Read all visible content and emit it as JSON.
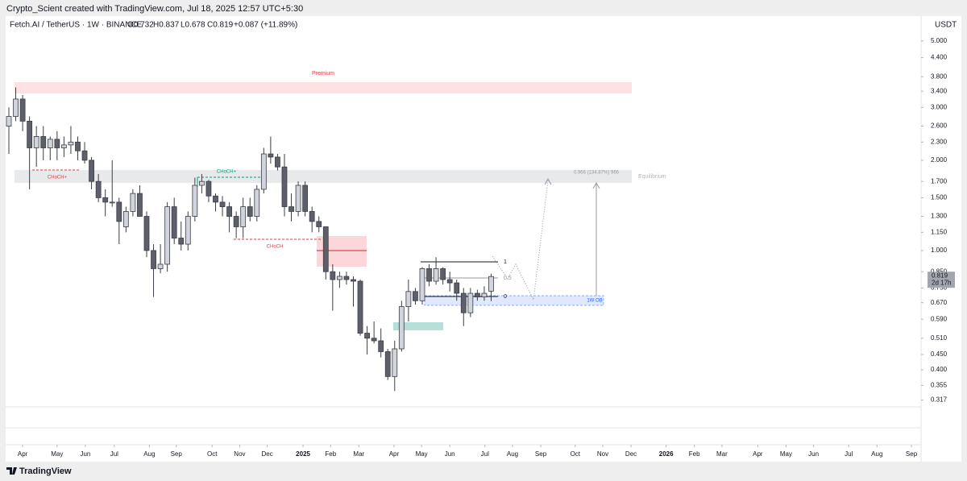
{
  "header": {
    "credit": "Crypto_Scient created with TradingView.com, Jul 18, 2025 12:57 UTC+5:30",
    "symbol": "Fetch.AI / TetherUS · 1W · BINANCE",
    "open": "O0.732",
    "high": "H0.837",
    "low": "L0.678",
    "close": "C0.819",
    "change": "+0.087 (+11.89%)"
  },
  "currency": "USDT",
  "price_tag": {
    "price": "0.819",
    "countdown": "2d 17h"
  },
  "annotations": {
    "premium": "Premium",
    "equilibrium": "Equilibrium",
    "measure": "0.966 (134.87%) 966",
    "choch_1": "CHoCH+",
    "choch_2": "CHoCH+",
    "choch_3": "CHoCH",
    "order_block": "1W OB",
    "fib_1": "1",
    "fib_05": "0.5",
    "fib_0": "0"
  },
  "footer": {
    "brand": "TradingView"
  },
  "chart_data": {
    "type": "candlestick",
    "log_scale": true,
    "up_color": "#d1d4dc",
    "down_color": "#5d606b",
    "border_color": "#3a3d46",
    "series": [
      {
        "open": [
          2.6,
          2.8,
          3.2,
          2.7,
          2.2,
          2.4,
          2.2,
          2.35,
          2.2,
          2.25,
          2.3,
          2.15,
          2.0,
          1.7,
          1.5,
          1.45,
          1.45,
          1.2,
          1.35,
          1.55,
          1.3,
          1.0,
          0.87,
          0.9,
          1.4,
          1.1,
          1.05,
          1.3,
          1.65,
          1.7,
          1.52,
          1.45,
          1.4,
          1.3,
          1.2,
          1.4,
          1.3,
          1.6,
          2.1,
          2.05,
          1.9,
          1.4,
          1.35,
          1.65,
          1.35,
          1.25,
          1.2,
          0.85,
          0.8,
          0.82,
          0.8,
          0.79,
          0.53,
          0.51,
          0.5,
          0.46,
          0.38,
          0.47,
          0.65,
          0.73,
          0.68,
          0.87,
          0.79,
          0.87,
          0.8,
          0.78,
          0.72,
          0.62,
          0.72,
          0.7,
          0.732
        ],
        "high": [
          3.0,
          3.5,
          3.3,
          2.8,
          2.6,
          2.6,
          2.4,
          2.5,
          2.4,
          2.6,
          2.4,
          2.3,
          2.05,
          1.8,
          1.6,
          2.0,
          1.5,
          1.4,
          1.6,
          1.65,
          1.35,
          1.05,
          1.05,
          1.45,
          1.5,
          1.25,
          1.35,
          1.75,
          1.8,
          1.72,
          1.55,
          1.52,
          1.45,
          1.35,
          1.5,
          1.5,
          1.65,
          2.2,
          2.4,
          2.1,
          2.1,
          1.55,
          1.7,
          1.7,
          1.4,
          1.3,
          1.2,
          0.9,
          0.85,
          0.85,
          0.82,
          0.8,
          0.56,
          0.58,
          0.55,
          0.47,
          0.5,
          0.68,
          0.8,
          0.75,
          0.88,
          0.9,
          0.95,
          0.88,
          0.85,
          0.8,
          0.75,
          0.75,
          0.74,
          0.76,
          0.837
        ],
        "low": [
          2.1,
          2.7,
          2.5,
          1.6,
          1.9,
          2.0,
          2.0,
          2.0,
          2.05,
          2.1,
          2.0,
          1.95,
          1.6,
          1.45,
          1.3,
          1.4,
          1.05,
          1.15,
          1.3,
          1.3,
          0.95,
          0.7,
          0.84,
          0.85,
          1.05,
          1.0,
          1.0,
          1.25,
          1.55,
          1.45,
          1.35,
          1.3,
          1.15,
          1.1,
          1.1,
          1.25,
          1.25,
          1.55,
          1.95,
          1.85,
          1.3,
          1.25,
          1.3,
          1.3,
          1.15,
          1.15,
          0.8,
          0.63,
          0.75,
          0.77,
          0.65,
          0.52,
          0.45,
          0.49,
          0.44,
          0.37,
          0.34,
          0.46,
          0.58,
          0.66,
          0.66,
          0.76,
          0.77,
          0.77,
          0.73,
          0.68,
          0.56,
          0.6,
          0.68,
          0.68,
          0.678
        ],
        "close": [
          2.8,
          3.2,
          2.7,
          2.2,
          2.4,
          2.2,
          2.35,
          2.2,
          2.25,
          2.3,
          2.15,
          2.0,
          1.7,
          1.5,
          1.45,
          1.45,
          1.25,
          1.35,
          1.55,
          1.3,
          1.0,
          0.87,
          0.9,
          1.4,
          1.1,
          1.05,
          1.3,
          1.65,
          1.7,
          1.52,
          1.45,
          1.4,
          1.3,
          1.2,
          1.4,
          1.3,
          1.6,
          2.1,
          2.05,
          1.9,
          1.4,
          1.35,
          1.65,
          1.35,
          1.25,
          1.2,
          0.85,
          0.8,
          0.82,
          0.8,
          0.79,
          0.53,
          0.51,
          0.5,
          0.46,
          0.38,
          0.47,
          0.65,
          0.73,
          0.68,
          0.87,
          0.79,
          0.87,
          0.8,
          0.78,
          0.72,
          0.62,
          0.72,
          0.7,
          0.72,
          0.819
        ]
      }
    ],
    "xlim": [
      -0.35,
      132.4
    ],
    "xticks": [
      {
        "value": 2.0,
        "label": "Apr"
      },
      {
        "value": 7.0,
        "label": "May"
      },
      {
        "value": 11.1,
        "label": "Jun"
      },
      {
        "value": 15.3,
        "label": "Jul"
      },
      {
        "value": 20.4,
        "label": "Aug"
      },
      {
        "value": 24.3,
        "label": "Sep"
      },
      {
        "value": 29.5,
        "label": "Oct"
      },
      {
        "value": 33.5,
        "label": "Nov"
      },
      {
        "value": 37.5,
        "label": "Dec"
      },
      {
        "value": 42.7,
        "label": "2025"
      },
      {
        "value": 46.7,
        "label": "Feb"
      },
      {
        "value": 50.8,
        "label": "Mar"
      },
      {
        "value": 55.9,
        "label": "Apr"
      },
      {
        "value": 59.9,
        "label": "May"
      },
      {
        "value": 64.0,
        "label": "Jun"
      },
      {
        "value": 69.1,
        "label": "Jul"
      },
      {
        "value": 73.1,
        "label": "Aug"
      },
      {
        "value": 77.2,
        "label": "Sep"
      },
      {
        "value": 82.2,
        "label": "Oct"
      },
      {
        "value": 86.2,
        "label": "Nov"
      },
      {
        "value": 90.3,
        "label": "Dec"
      },
      {
        "value": 95.4,
        "label": "2026"
      },
      {
        "value": 99.5,
        "label": "Feb"
      },
      {
        "value": 103.5,
        "label": "Mar"
      },
      {
        "value": 108.7,
        "label": "Apr"
      },
      {
        "value": 112.8,
        "label": "May"
      },
      {
        "value": 116.8,
        "label": "Jun"
      },
      {
        "value": 121.9,
        "label": "Jul"
      },
      {
        "value": 126.0,
        "label": "Aug"
      },
      {
        "value": 131.0,
        "label": "Sep"
      }
    ],
    "ylim": [
      0.301,
      6.05
    ],
    "yticks": [
      {
        "value": 5,
        "label": "5.000"
      },
      {
        "value": 4.4,
        "label": "4.400"
      },
      {
        "value": 3.8,
        "label": "3.800"
      },
      {
        "value": 3.4,
        "label": "3.400"
      },
      {
        "value": 3,
        "label": "3.000"
      },
      {
        "value": 2.6,
        "label": "2.600"
      },
      {
        "value": 2.3,
        "label": "2.300"
      },
      {
        "value": 2,
        "label": "2.000"
      },
      {
        "value": 1.7,
        "label": "1.700"
      },
      {
        "value": 1.5,
        "label": "1.500"
      },
      {
        "value": 1.3,
        "label": "1.300"
      },
      {
        "value": 1.15,
        "label": "1.150"
      },
      {
        "value": 1,
        "label": "1.000"
      },
      {
        "value": 0.85,
        "label": "0.850"
      },
      {
        "value": 0.75,
        "label": "0.750"
      },
      {
        "value": 0.67,
        "label": "0.670"
      },
      {
        "value": 0.59,
        "label": "0.590"
      },
      {
        "value": 0.51,
        "label": "0.510"
      },
      {
        "value": 0.45,
        "label": "0.450"
      },
      {
        "value": 0.4,
        "label": "0.400"
      },
      {
        "value": 0.355,
        "label": "0.355"
      },
      {
        "value": 0.317,
        "label": "0.317"
      }
    ]
  }
}
